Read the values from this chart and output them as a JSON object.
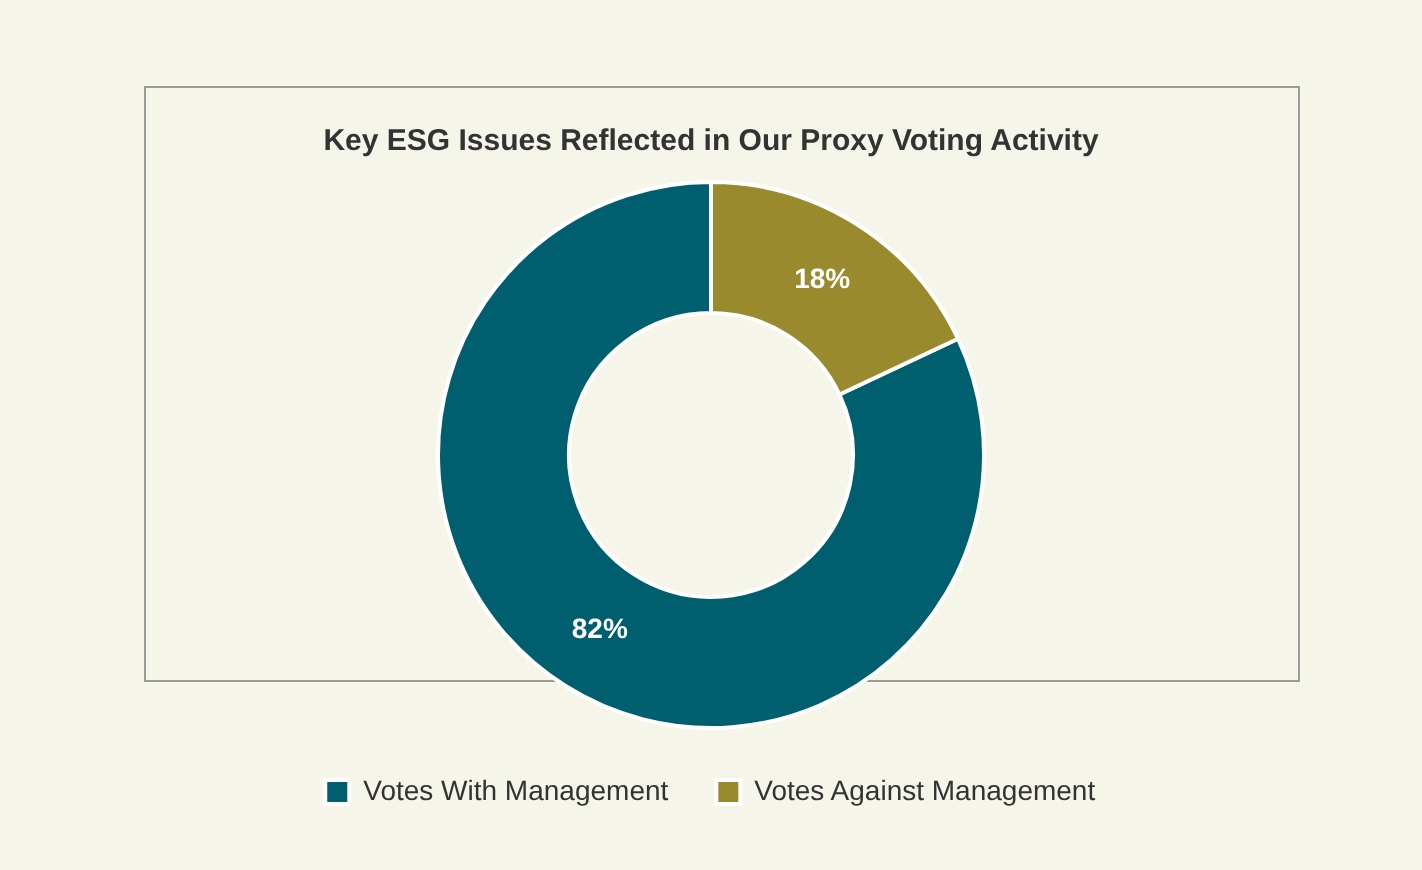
{
  "chart_data": {
    "type": "donut",
    "title": "Key ESG Issues Reflected in Our Proxy Voting Activity",
    "categories": [
      "Votes With Management",
      "Votes Against Management"
    ],
    "values": [
      82,
      18
    ],
    "colors": [
      "#005f6e",
      "#9a8a2e"
    ],
    "value_labels": [
      "82%",
      "18%"
    ],
    "legend": "bottom"
  }
}
